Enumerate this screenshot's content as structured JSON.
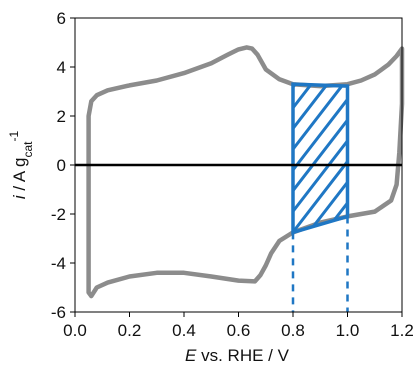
{
  "chart_data": {
    "type": "line",
    "title": "",
    "xlabel": {
      "italic": "E",
      "rest": " vs. RHE / V"
    },
    "ylabel": {
      "italic": "i",
      "rest": " / A g",
      "sub": "cat",
      "sup": "-1"
    },
    "xlim": [
      0.0,
      1.2
    ],
    "ylim": [
      -6,
      6
    ],
    "x_ticks": [
      "0.0",
      "0.2",
      "0.4",
      "0.6",
      "0.8",
      "1.0",
      "1.2"
    ],
    "y_ticks": [
      "6",
      "4",
      "2",
      "0",
      "-2",
      "-4",
      "-6"
    ],
    "x_tick_values": [
      0.0,
      0.2,
      0.4,
      0.6,
      0.8,
      1.0,
      1.2
    ],
    "y_tick_values": [
      6,
      4,
      2,
      0,
      -2,
      -4,
      -6
    ],
    "zero_line_y": 0,
    "series": [
      {
        "color": "#8c8c8c",
        "x": [
          0.05,
          0.05,
          0.06,
          0.08,
          0.12,
          0.2,
          0.3,
          0.4,
          0.5,
          0.56,
          0.6,
          0.63,
          0.65,
          0.67,
          0.7,
          0.75,
          0.8,
          0.9,
          1.0,
          1.05,
          1.1,
          1.15,
          1.18,
          1.2,
          1.2,
          1.19,
          1.18,
          1.16,
          1.1,
          1.0,
          0.9,
          0.8,
          0.75,
          0.72,
          0.7,
          0.68,
          0.66,
          0.6,
          0.5,
          0.4,
          0.3,
          0.2,
          0.12,
          0.08,
          0.06,
          0.05
        ],
        "y": [
          -5.2,
          2.0,
          2.6,
          2.85,
          3.05,
          3.25,
          3.45,
          3.75,
          4.15,
          4.5,
          4.72,
          4.8,
          4.75,
          4.5,
          3.9,
          3.5,
          3.3,
          3.22,
          3.3,
          3.45,
          3.7,
          4.1,
          4.45,
          4.75,
          2.5,
          0.5,
          -0.8,
          -1.45,
          -1.9,
          -2.1,
          -2.35,
          -2.75,
          -3.1,
          -3.6,
          -4.1,
          -4.5,
          -4.75,
          -4.72,
          -4.55,
          -4.4,
          -4.4,
          -4.55,
          -4.8,
          -5.0,
          -5.35,
          -5.2
        ]
      }
    ],
    "shaded_region": {
      "x_range": [
        0.8,
        1.0
      ],
      "upper": [
        3.3,
        3.22
      ],
      "lower": [
        -2.75,
        -2.1
      ],
      "color": "#1f77c4"
    }
  }
}
